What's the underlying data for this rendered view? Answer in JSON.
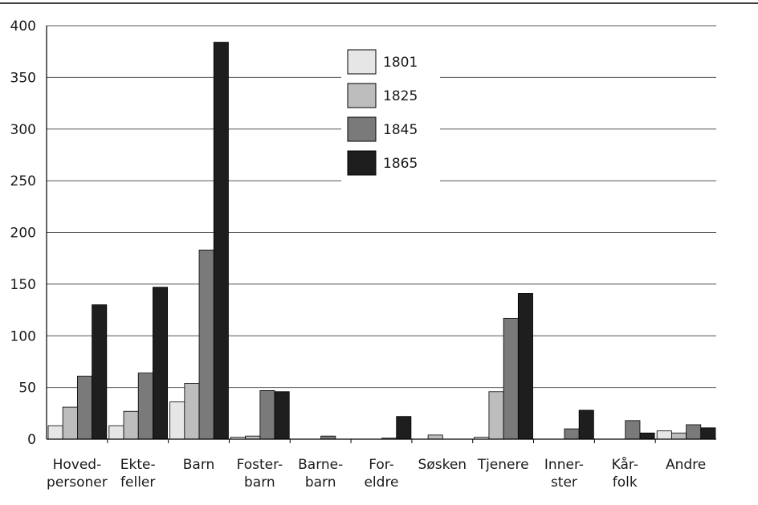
{
  "chart_data": {
    "type": "bar",
    "title": "",
    "xlabel": "",
    "ylabel": "",
    "ylim": [
      0,
      400
    ],
    "yticks": [
      0,
      50,
      100,
      150,
      200,
      250,
      300,
      350,
      400
    ],
    "grid": true,
    "legend_position": "top-center",
    "categories": [
      [
        "Hoved-",
        "personer"
      ],
      [
        "Ekte-",
        "feller"
      ],
      [
        "Barn"
      ],
      [
        "Foster-",
        "barn"
      ],
      [
        "Barne-",
        "barn"
      ],
      [
        "For-",
        "eldre"
      ],
      [
        "Søsken"
      ],
      [
        "Tjenere"
      ],
      [
        "Inner-",
        "ster"
      ],
      [
        "Kår-",
        "folk"
      ],
      [
        "Andre"
      ]
    ],
    "series": [
      {
        "name": "1801",
        "color": "#e6e6e6",
        "values": [
          13,
          13,
          36,
          2,
          0,
          0,
          0,
          2,
          0,
          0,
          8
        ]
      },
      {
        "name": "1825",
        "color": "#bdbdbd",
        "values": [
          31,
          27,
          54,
          3,
          0,
          0,
          4,
          46,
          0,
          0,
          6
        ]
      },
      {
        "name": "1845",
        "color": "#7a7a7a",
        "values": [
          61,
          64,
          183,
          47,
          3,
          1,
          0,
          117,
          10,
          18,
          14
        ]
      },
      {
        "name": "1865",
        "color": "#1e1e1e",
        "values": [
          130,
          147,
          384,
          46,
          0,
          22,
          0,
          141,
          28,
          6,
          11
        ]
      }
    ]
  }
}
